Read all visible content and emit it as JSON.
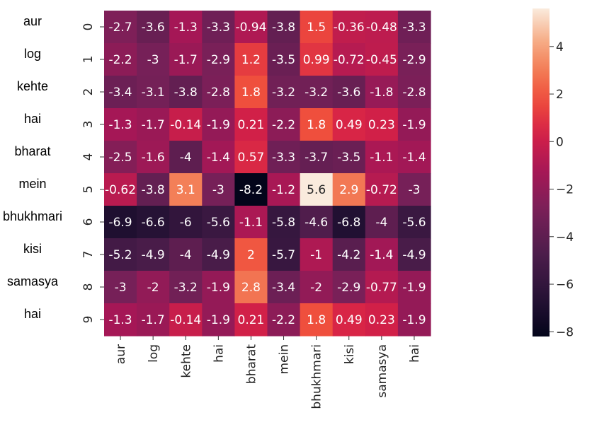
{
  "chart_data": {
    "type": "heatmap",
    "row_words": [
      "aur",
      "log",
      "kehte",
      "hai",
      "bharat",
      "mein",
      "bhukhmari",
      "kisi",
      "samasya",
      "hai"
    ],
    "row_ticks": [
      "0",
      "1",
      "2",
      "3",
      "4",
      "5",
      "6",
      "7",
      "8",
      "9"
    ],
    "columns": [
      "aur",
      "log",
      "kehte",
      "hai",
      "bharat",
      "mein",
      "bhukhmari",
      "kisi",
      "samasya",
      "hai"
    ],
    "values": [
      [
        -2.7,
        -3.6,
        -1.3,
        -3.3,
        -0.94,
        -3.8,
        1.5,
        -0.36,
        -0.48,
        -3.3
      ],
      [
        -2.2,
        -3,
        -1.7,
        -2.9,
        1.2,
        -3.5,
        0.99,
        -0.72,
        -0.45,
        -2.9
      ],
      [
        -3.4,
        -3.1,
        -3.8,
        -2.8,
        1.8,
        -3.2,
        -3.2,
        -3.6,
        -1.8,
        -2.8
      ],
      [
        -1.3,
        -1.7,
        -0.14,
        -1.9,
        0.21,
        -2.2,
        1.8,
        0.49,
        0.23,
        -1.9
      ],
      [
        -2.5,
        -1.6,
        -4,
        -1.4,
        0.57,
        -3.3,
        -3.7,
        -3.5,
        -1.1,
        -1.4
      ],
      [
        -0.62,
        -3.8,
        3.1,
        -3,
        -8.2,
        -1.2,
        5.6,
        2.9,
        -0.72,
        -3
      ],
      [
        -6.9,
        -6.6,
        -6,
        -5.6,
        -1.1,
        -5.8,
        -4.6,
        -6.8,
        -4,
        -5.6
      ],
      [
        -5.2,
        -4.9,
        -4,
        -4.9,
        2,
        -5.7,
        -1,
        -4.2,
        -1.4,
        -4.9
      ],
      [
        -3,
        -2,
        -3.2,
        -1.9,
        2.8,
        -3.4,
        -2,
        -2.9,
        -0.77,
        -1.9
      ],
      [
        -1.3,
        -1.7,
        -0.14,
        -1.9,
        0.21,
        -2.2,
        1.8,
        0.49,
        0.23,
        -1.9
      ]
    ],
    "cell_labels": [
      [
        "-2.7",
        "-3.6",
        "-1.3",
        "-3.3",
        "-0.94",
        "-3.8",
        "1.5",
        "-0.36",
        "-0.48",
        "-3.3"
      ],
      [
        "-2.2",
        "-3",
        "-1.7",
        "-2.9",
        "1.2",
        "-3.5",
        "0.99",
        "-0.72",
        "-0.45",
        "-2.9"
      ],
      [
        "-3.4",
        "-3.1",
        "-3.8",
        "-2.8",
        "1.8",
        "-3.2",
        "-3.2",
        "-3.6",
        "-1.8",
        "-2.8"
      ],
      [
        "-1.3",
        "-1.7",
        "-0.14",
        "-1.9",
        "0.21",
        "-2.2",
        "1.8",
        "0.49",
        "0.23",
        "-1.9"
      ],
      [
        "-2.5",
        "-1.6",
        "-4",
        "-1.4",
        "0.57",
        "-3.3",
        "-3.7",
        "-3.5",
        "-1.1",
        "-1.4"
      ],
      [
        "-0.62",
        "-3.8",
        "3.1",
        "-3",
        "-8.2",
        "-1.2",
        "5.6",
        "2.9",
        "-0.72",
        "-3"
      ],
      [
        "-6.9",
        "-6.6",
        "-6",
        "-5.6",
        "-1.1",
        "-5.8",
        "-4.6",
        "-6.8",
        "-4",
        "-5.6"
      ],
      [
        "-5.2",
        "-4.9",
        "-4",
        "-4.9",
        "2",
        "-5.7",
        "-1",
        "-4.2",
        "-1.4",
        "-4.9"
      ],
      [
        "-3",
        "-2",
        "-3.2",
        "-1.9",
        "2.8",
        "-3.4",
        "-2",
        "-2.9",
        "-0.77",
        "-1.9"
      ],
      [
        "-1.3",
        "-1.7",
        "-0.14",
        "-1.9",
        "0.21",
        "-2.2",
        "1.8",
        "0.49",
        "0.23",
        "-1.9"
      ]
    ],
    "colorbar": {
      "vmin": -8.2,
      "vmax": 5.6,
      "ticks": [
        4,
        2,
        0,
        -2,
        -4,
        -6,
        -8
      ],
      "tick_labels": [
        "4",
        "2",
        "0",
        "−2",
        "−4",
        "−6",
        "−8"
      ]
    },
    "colormap": "rocket",
    "grid": false,
    "title": "",
    "xlabel": "",
    "ylabel": ""
  }
}
